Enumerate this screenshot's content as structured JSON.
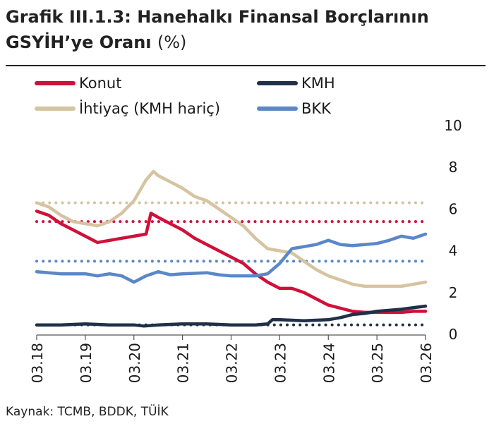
{
  "header": {
    "title_line1": "Grafik III.1.3: Hanehalkı Finansal Borçlarının",
    "title_line2": "GSYİH’ye Oranı",
    "unit": "(%)"
  },
  "footer": {
    "source": "Kaynak: TCMB, BDDK, TÜİK"
  },
  "colors": {
    "konut": "#d0103a",
    "ihtiyac": "#d6c3a0",
    "kmh": "#1f3048",
    "bkk": "#5b87c8",
    "axis": "#555555",
    "background": "#ffffff"
  },
  "chart_data": {
    "type": "line",
    "title": "Grafik III.1.3: Hanehalkı Finansal Borçlarının GSYİH’ye Oranı (%)",
    "xlabel": "",
    "ylabel": "",
    "y_axis_side": "right",
    "ylim": [
      0,
      10
    ],
    "yticks": [
      "0",
      "2",
      "4",
      "6",
      "8",
      "10"
    ],
    "xlim": [
      2018.0,
      2026.0
    ],
    "xticks": [
      "03.18",
      "03.19",
      "03.20",
      "03.21",
      "03.22",
      "03.23",
      "03.24",
      "03.25",
      "03.26"
    ],
    "grid": false,
    "legend": "top, two columns",
    "series": [
      {
        "name": "Konut",
        "color": "#d0103a",
        "average": 5.4,
        "x": [
          2018.0,
          2018.25,
          2018.5,
          2018.75,
          2019.0,
          2019.25,
          2019.5,
          2019.75,
          2020.0,
          2020.25,
          2020.35,
          2020.5,
          2020.75,
          2021.0,
          2021.25,
          2021.5,
          2021.75,
          2022.0,
          2022.25,
          2022.5,
          2022.75,
          2023.0,
          2023.25,
          2023.5,
          2023.75,
          2024.0,
          2024.25,
          2024.5,
          2024.75,
          2025.0,
          2025.25,
          2025.5,
          2025.75,
          2026.0
        ],
        "y": [
          5.9,
          5.7,
          5.3,
          5.0,
          4.7,
          4.4,
          4.5,
          4.6,
          4.7,
          4.8,
          5.8,
          5.6,
          5.3,
          5.0,
          4.6,
          4.3,
          4.0,
          3.7,
          3.4,
          2.9,
          2.5,
          2.2,
          2.2,
          2.0,
          1.7,
          1.4,
          1.25,
          1.1,
          1.05,
          1.05,
          1.05,
          1.05,
          1.1,
          1.1
        ]
      },
      {
        "name": "İhtiyaç (KMH hariç)",
        "color": "#d6c3a0",
        "average": 6.3,
        "x": [
          2018.0,
          2018.25,
          2018.5,
          2018.75,
          2019.0,
          2019.25,
          2019.5,
          2019.75,
          2020.0,
          2020.25,
          2020.4,
          2020.5,
          2020.75,
          2021.0,
          2021.25,
          2021.5,
          2021.75,
          2022.0,
          2022.25,
          2022.5,
          2022.75,
          2023.0,
          2023.25,
          2023.5,
          2023.75,
          2024.0,
          2024.25,
          2024.5,
          2024.75,
          2025.0,
          2025.25,
          2025.5,
          2025.75,
          2026.0
        ],
        "y": [
          6.3,
          6.1,
          5.7,
          5.4,
          5.3,
          5.2,
          5.4,
          5.8,
          6.4,
          7.4,
          7.8,
          7.6,
          7.3,
          7.0,
          6.6,
          6.4,
          6.0,
          5.6,
          5.2,
          4.6,
          4.1,
          4.0,
          3.9,
          3.5,
          3.1,
          2.8,
          2.6,
          2.4,
          2.3,
          2.3,
          2.3,
          2.3,
          2.4,
          2.5
        ]
      },
      {
        "name": "KMH",
        "color": "#1f3048",
        "average": 0.45,
        "x": [
          2018.0,
          2018.5,
          2019.0,
          2019.5,
          2020.0,
          2020.2,
          2020.5,
          2021.0,
          2021.5,
          2022.0,
          2022.5,
          2022.75,
          2022.85,
          2023.0,
          2023.5,
          2024.0,
          2024.25,
          2024.5,
          2024.75,
          2025.0,
          2025.5,
          2026.0
        ],
        "y": [
          0.45,
          0.45,
          0.5,
          0.45,
          0.45,
          0.4,
          0.45,
          0.5,
          0.5,
          0.45,
          0.45,
          0.5,
          0.7,
          0.7,
          0.65,
          0.7,
          0.8,
          0.95,
          1.0,
          1.1,
          1.2,
          1.35
        ]
      },
      {
        "name": "BKK",
        "color": "#5b87c8",
        "average": 3.5,
        "x": [
          2018.0,
          2018.5,
          2019.0,
          2019.25,
          2019.5,
          2019.75,
          2020.0,
          2020.25,
          2020.5,
          2020.75,
          2021.0,
          2021.5,
          2021.75,
          2022.0,
          2022.5,
          2022.75,
          2023.0,
          2023.25,
          2023.5,
          2023.75,
          2024.0,
          2024.25,
          2024.5,
          2024.75,
          2025.0,
          2025.25,
          2025.5,
          2025.75,
          2026.0
        ],
        "y": [
          3.0,
          2.9,
          2.9,
          2.8,
          2.9,
          2.8,
          2.5,
          2.8,
          3.0,
          2.85,
          2.9,
          2.95,
          2.85,
          2.8,
          2.8,
          2.9,
          3.4,
          4.1,
          4.2,
          4.3,
          4.5,
          4.3,
          4.25,
          4.3,
          4.35,
          4.5,
          4.7,
          4.6,
          4.8
        ]
      }
    ]
  }
}
